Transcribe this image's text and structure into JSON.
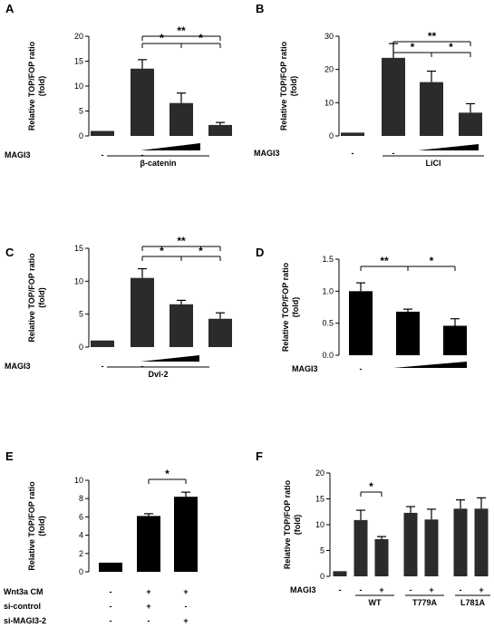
{
  "chart_data": [
    {
      "panel": "A",
      "type": "bar",
      "ylabel": "Relative TOP/FOP ratio\n(fold)",
      "ylim": [
        0,
        20
      ],
      "yticks": [
        0,
        5,
        10,
        15,
        20
      ],
      "bar_color": "#2d2a2a",
      "values": [
        1.0,
        13.5,
        6.6,
        2.2
      ],
      "errors": [
        0,
        1.8,
        2.0,
        0.5
      ],
      "x_row_label": "MAGI3",
      "x_row_values": [
        "-",
        "-"
      ],
      "group_label": "β-catenin",
      "significance": [
        {
          "from": 1,
          "to": 3,
          "text": "**"
        },
        {
          "from": 1,
          "to": 2,
          "text": "*"
        },
        {
          "from": 2,
          "to": 3,
          "text": "*"
        }
      ]
    },
    {
      "panel": "B",
      "type": "bar",
      "ylabel": "Relative TOP/FOP ratio\n(fold)",
      "ylim": [
        0,
        30
      ],
      "yticks": [
        0,
        10,
        20,
        30
      ],
      "bar_color": "#2d2a2a",
      "values": [
        1.0,
        23.5,
        16.2,
        7.0
      ],
      "errors": [
        0,
        4.3,
        3.3,
        2.7
      ],
      "x_row_label": "MAGI3",
      "x_row_values": [
        "-",
        "-"
      ],
      "group_label": "LiCl",
      "significance": [
        {
          "from": 1,
          "to": 3,
          "text": "**"
        },
        {
          "from": 1,
          "to": 2,
          "text": "*"
        },
        {
          "from": 2,
          "to": 3,
          "text": "*"
        }
      ]
    },
    {
      "panel": "C",
      "type": "bar",
      "ylabel": "Relative TOP/FOP ratio\n(fold)",
      "ylim": [
        0,
        15
      ],
      "yticks": [
        0,
        5,
        10,
        15
      ],
      "bar_color": "#2d2a2a",
      "values": [
        1.0,
        10.5,
        6.5,
        4.3
      ],
      "errors": [
        0,
        1.4,
        0.6,
        0.9
      ],
      "x_row_label": "MAGI3",
      "x_row_values": [
        "-",
        "-"
      ],
      "group_label": "Dvl-2",
      "significance": [
        {
          "from": 1,
          "to": 3,
          "text": "**"
        },
        {
          "from": 1,
          "to": 2,
          "text": "*"
        },
        {
          "from": 2,
          "to": 3,
          "text": "*"
        }
      ]
    },
    {
      "panel": "D",
      "type": "bar",
      "ylabel": "Relative TOP/FOP ratio\n(fold)",
      "ylim": [
        0,
        1.5
      ],
      "yticks": [
        "0.0",
        "0.5",
        "1.0",
        "1.5"
      ],
      "bar_color": "#000000",
      "values": [
        1.0,
        0.68,
        0.46
      ],
      "errors": [
        0.13,
        0.04,
        0.11
      ],
      "x_row_label": "MAGI3",
      "x_row_values": [
        "-"
      ],
      "significance": [
        {
          "from": 0,
          "to": 1,
          "text": "**"
        },
        {
          "from": 1,
          "to": 2,
          "text": "*"
        }
      ]
    },
    {
      "panel": "E",
      "type": "bar",
      "ylabel": "Relative TOP/FOP ratio\n(fold)",
      "ylim": [
        0,
        10
      ],
      "yticks": [
        0,
        2,
        4,
        6,
        8,
        10
      ],
      "bar_color": "#000000",
      "values": [
        1.0,
        6.1,
        8.2
      ],
      "errors": [
        0,
        0.25,
        0.5
      ],
      "rows": [
        {
          "label": "Wnt3a CM",
          "values": [
            "-",
            "+",
            "+"
          ]
        },
        {
          "label": "si-control",
          "values": [
            "-",
            "+",
            "-"
          ]
        },
        {
          "label": "si-MAGI3-2",
          "values": [
            "-",
            "-",
            "+"
          ]
        }
      ],
      "significance": [
        {
          "from": 1,
          "to": 2,
          "text": "*"
        }
      ]
    },
    {
      "panel": "F",
      "type": "bar",
      "ylabel": "Relative TOP/FOP ratio\n(fold)",
      "ylim": [
        0,
        20
      ],
      "yticks": [
        0,
        5,
        10,
        15,
        20
      ],
      "bar_color": "#2d2a2a",
      "values": [
        1.0,
        10.9,
        7.2,
        12.3,
        11.0,
        13.1,
        13.1
      ],
      "errors": [
        0,
        1.9,
        0.5,
        1.2,
        2.0,
        1.7,
        2.1
      ],
      "x_row_label": "MAGI3",
      "x_row_values": [
        "-",
        "-",
        "+",
        "-",
        "+",
        "-",
        "+"
      ],
      "groups": [
        "WT",
        "T779A",
        "L781A"
      ],
      "significance": [
        {
          "from": 1,
          "to": 2,
          "text": "*"
        }
      ]
    }
  ]
}
